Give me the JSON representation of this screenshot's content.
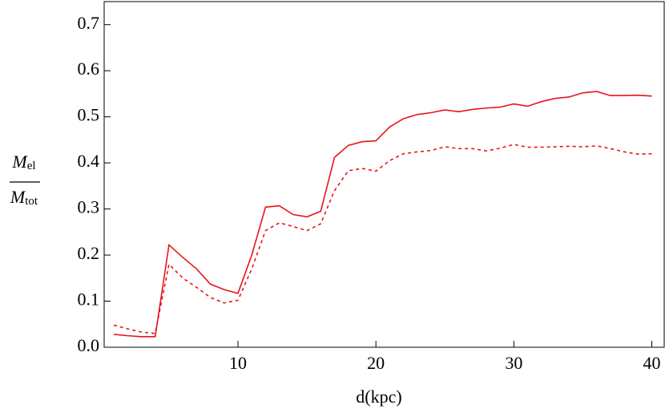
{
  "chart_data": {
    "type": "line",
    "xlabel": "d(kpc)",
    "ylabel": {
      "numerator": "M",
      "numerator_sub": "el",
      "denominator": "M",
      "denominator_sub": "tot"
    },
    "x": [
      1,
      2,
      3,
      4,
      5,
      6,
      7,
      8,
      9,
      10,
      11,
      12,
      13,
      14,
      15,
      16,
      17,
      18,
      19,
      20,
      21,
      22,
      23,
      24,
      25,
      26,
      27,
      28,
      29,
      30,
      31,
      32,
      33,
      34,
      35,
      36,
      37,
      38,
      39,
      40
    ],
    "series": [
      {
        "color": "#e8141a",
        "style": "solid",
        "values": [
          0.028,
          0.025,
          0.023,
          0.023,
          0.222,
          0.195,
          0.17,
          0.137,
          0.125,
          0.117,
          0.2,
          0.304,
          0.307,
          0.288,
          0.283,
          0.295,
          0.412,
          0.438,
          0.446,
          0.448,
          0.478,
          0.496,
          0.505,
          0.509,
          0.515,
          0.511,
          0.516,
          0.519,
          0.521,
          0.528,
          0.523,
          0.533,
          0.54,
          0.543,
          0.552,
          0.555,
          0.546,
          0.546,
          0.547,
          0.545
        ]
      },
      {
        "color": "#e8141a",
        "style": "dashed",
        "values": [
          0.048,
          0.04,
          0.033,
          0.03,
          0.18,
          0.15,
          0.13,
          0.108,
          0.096,
          0.102,
          0.17,
          0.253,
          0.27,
          0.262,
          0.253,
          0.268,
          0.34,
          0.383,
          0.388,
          0.382,
          0.405,
          0.42,
          0.424,
          0.427,
          0.435,
          0.431,
          0.431,
          0.426,
          0.432,
          0.44,
          0.434,
          0.434,
          0.435,
          0.436,
          0.435,
          0.437,
          0.431,
          0.424,
          0.419,
          0.42
        ]
      }
    ],
    "xlim": [
      0.3,
      40.9
    ],
    "ylim": [
      0,
      0.75
    ],
    "xticks": [
      10,
      20,
      30,
      40
    ],
    "yticks": [
      {
        "value": 0,
        "label": "0.0"
      },
      0.1,
      0.2,
      0.3,
      0.4,
      0.5,
      0.6,
      0.7
    ]
  }
}
